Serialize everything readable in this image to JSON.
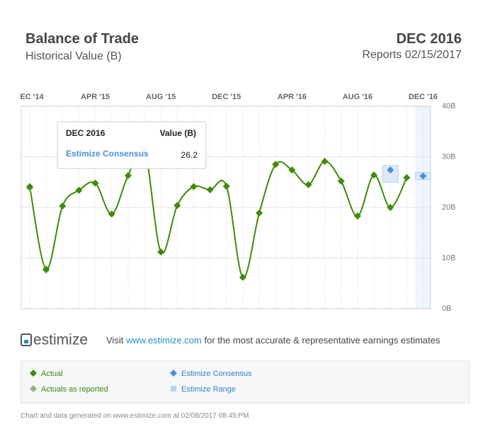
{
  "header": {
    "period": "DEC 2016",
    "reports": "Reports 02/15/2017"
  },
  "footer": {
    "logo": "estimize",
    "visit": "Visit",
    "link": "www.estimize.com",
    "tagline": "for the most accurate & representative earnings estimates",
    "generated": "Chart and data generated on www.estimize.com at 02/08/2017 08:45:PM"
  },
  "tooltip": {
    "title": "DEC 2016",
    "column": "Value (B)",
    "series": "Estimize Consensus"
  },
  "chart_data": {
    "type": "line",
    "title": "Balance of Trade",
    "subtitle": "Historical Value (B)",
    "categories": [
      "EC '14",
      null,
      null,
      null,
      "APR '15",
      null,
      null,
      null,
      "AUG '15",
      null,
      null,
      null,
      "DEC '15",
      null,
      null,
      null,
      "APR '16",
      null,
      null,
      null,
      "AUG '16",
      null,
      null,
      null,
      "DEC '16"
    ],
    "ylim": [
      0,
      40
    ],
    "yticks": [
      {
        "value": 0,
        "label": "0B"
      },
      {
        "value": 10,
        "label": "10B"
      },
      {
        "value": 20,
        "label": "20B"
      },
      {
        "value": 30,
        "label": "30B"
      },
      {
        "value": 40,
        "label": "40B"
      }
    ],
    "grid": true,
    "series": [
      {
        "name": "Actual",
        "color": "#3f8a06",
        "values": [
          24.1,
          7.8,
          20.3,
          23.4,
          24.8,
          18.7,
          26.3,
          31.4,
          11.2,
          20.4,
          24.1,
          23.5,
          24.2,
          6.2,
          18.9,
          28.5,
          27.4,
          24.5,
          29.1,
          25.2,
          18.3,
          26.4,
          20.0,
          25.9,
          null
        ]
      },
      {
        "name": "Actuals as reported",
        "color": "#93b57e",
        "values": [
          23.8,
          7.6,
          null,
          null,
          null,
          null,
          null,
          null,
          null,
          null,
          null,
          null,
          null,
          null,
          null,
          null,
          null,
          null,
          null,
          null,
          null,
          null,
          null,
          null,
          null
        ]
      },
      {
        "name": "Estimize Consensus",
        "color": "#4a90d9",
        "values": [
          null,
          null,
          null,
          null,
          null,
          null,
          null,
          null,
          null,
          null,
          null,
          null,
          null,
          null,
          null,
          null,
          null,
          null,
          null,
          null,
          null,
          null,
          27.4,
          null,
          26.2
        ]
      },
      {
        "name": "Estimize Range",
        "color": "#b5d3f0",
        "low": [
          null,
          null,
          null,
          null,
          null,
          null,
          null,
          null,
          null,
          null,
          null,
          null,
          null,
          null,
          null,
          null,
          null,
          null,
          null,
          null,
          null,
          null,
          25.0,
          null,
          25.5
        ],
        "high": [
          null,
          null,
          null,
          null,
          null,
          null,
          null,
          null,
          null,
          null,
          null,
          null,
          null,
          null,
          null,
          null,
          null,
          null,
          null,
          null,
          null,
          null,
          28.3,
          null,
          26.9
        ]
      }
    ]
  }
}
